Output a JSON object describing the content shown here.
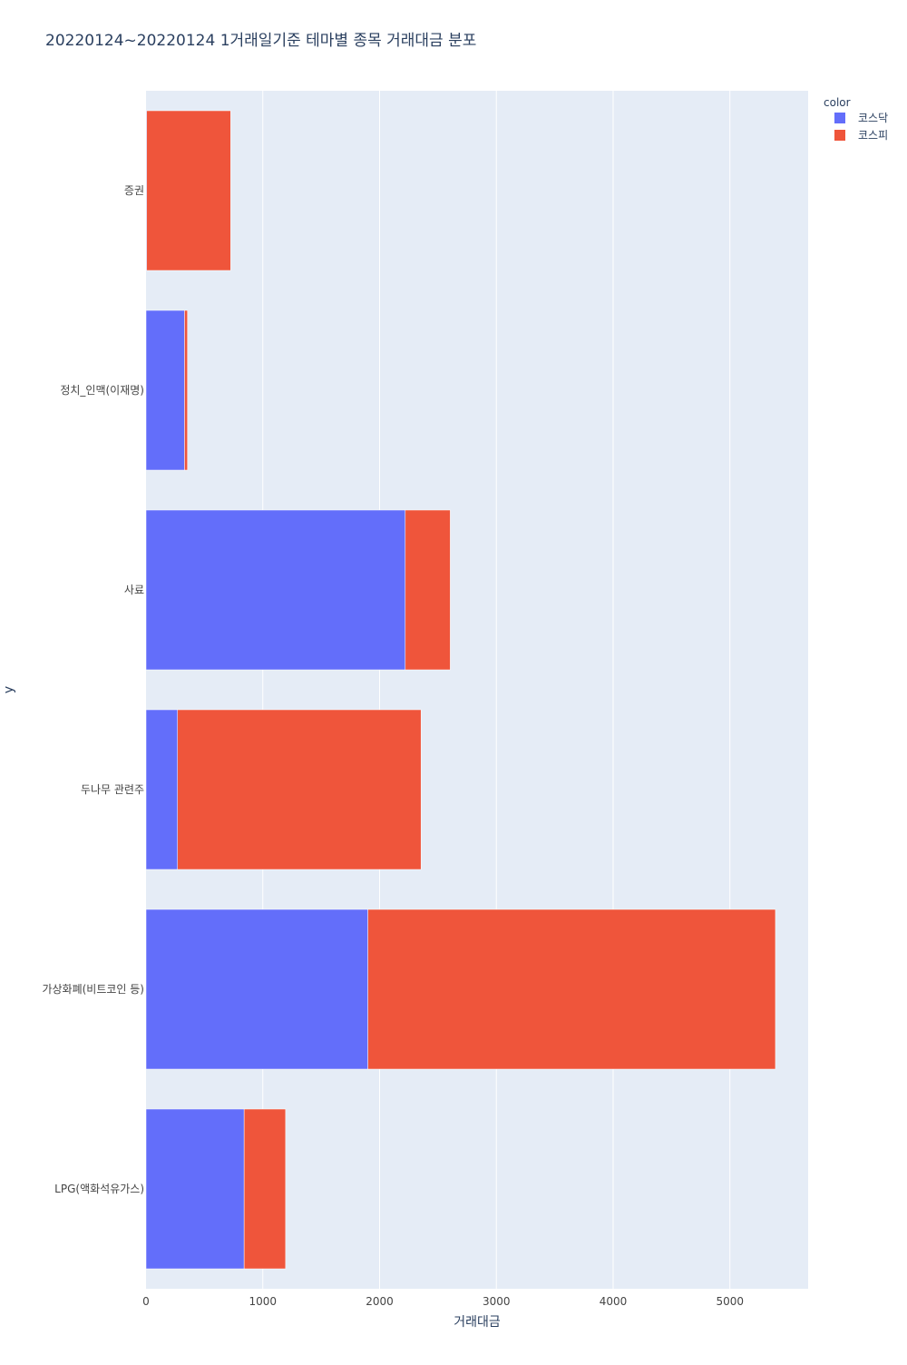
{
  "chart_data": {
    "type": "bar",
    "orientation": "horizontal",
    "barmode": "stack",
    "title": "20220124~20220124 1거래일기준 테마별 종목 거래대금 분포",
    "xlabel": "거래대금",
    "ylabel": "y",
    "xlim": [
      0,
      5670
    ],
    "xticks": [
      0,
      1000,
      2000,
      3000,
      4000,
      5000
    ],
    "grid": true,
    "legend_title": "color",
    "legend_position": "top-right",
    "categories": [
      "LPG(액화석유가스)",
      "가상화폐(비트코인 등)",
      "두나무 관련주",
      "사료",
      "정치_인맥(이재명)",
      "증권"
    ],
    "series": [
      {
        "name": "코스닥",
        "color": "#636efa",
        "values": [
          840,
          1900,
          270,
          2220,
          330,
          5
        ]
      },
      {
        "name": "코스피",
        "color": "#ef553b",
        "values": [
          355,
          3490,
          2085,
          385,
          25,
          720
        ]
      }
    ],
    "colors": {
      "plot_bg": "#e5ecf6",
      "grid": "#ffffff",
      "text": "#2a3f5f",
      "tick_text": "#444444"
    }
  }
}
